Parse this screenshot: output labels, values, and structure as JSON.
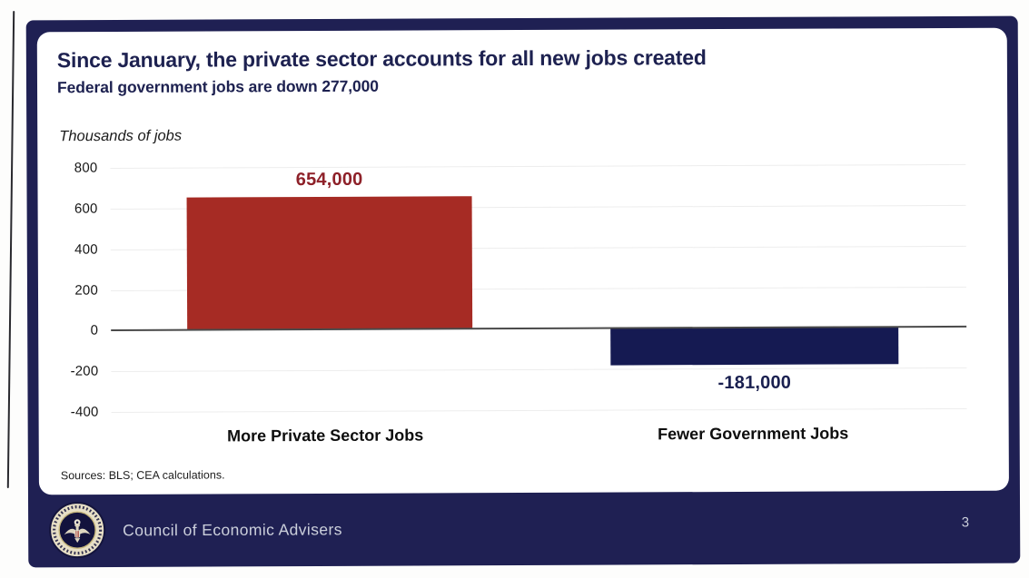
{
  "slide": {
    "title": "Since January, the private sector accounts for all new jobs created",
    "subtitle": "Federal government jobs are down 277,000",
    "sources": "Sources: BLS; CEA calculations.",
    "footer": {
      "organization": "Council of Economic Advisers",
      "page_number": "3"
    }
  },
  "colors": {
    "frame_navy": "#1f2053",
    "title_navy": "#1d2150",
    "bar_red": "#a62b24",
    "bar_navy": "#151a52",
    "footer_text": "#cbcfdb",
    "zero_line": "#4a4a4a",
    "gridline": "#ededed",
    "seal_parchment": "#e7dfc6"
  },
  "chart_data": {
    "type": "bar",
    "title": "",
    "xlabel": "",
    "ylabel": "Thousands of jobs",
    "categories": [
      "More Private Sector Jobs",
      "Fewer Government Jobs"
    ],
    "values": [
      654,
      -181
    ],
    "value_labels": [
      "654,000",
      "-181,000"
    ],
    "bar_colors": [
      "#a62b24",
      "#151a52"
    ],
    "value_label_colors": [
      "#8e2129",
      "#1a2050"
    ],
    "ylim": [
      -400,
      800
    ],
    "yticks": [
      800,
      600,
      400,
      200,
      0,
      -200,
      -400
    ],
    "grid": true,
    "legend": false
  }
}
